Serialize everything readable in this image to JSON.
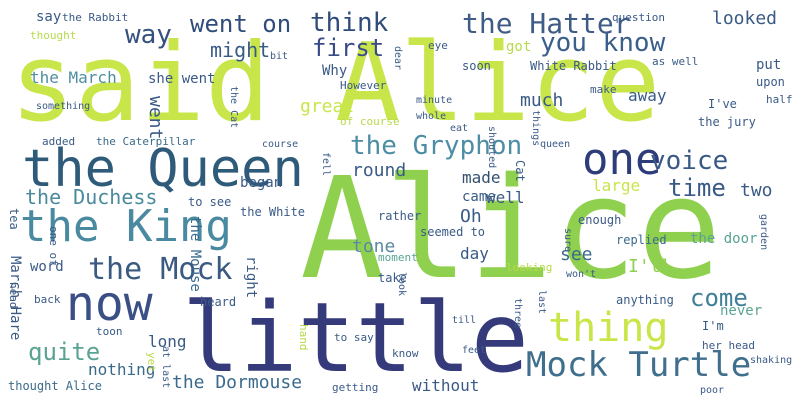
{
  "palette": {
    "background": "#ffffff",
    "lime": "#c8e64a",
    "green": "#8fd14f",
    "teal": "#5aa392",
    "steel": "#3f6f8c",
    "navy": "#2f3c7a",
    "indigo": "#3a3f7a",
    "mint": "#7fcdb5",
    "olive": "#b8d94a"
  },
  "cloud": {
    "words": [
      {
        "text": "said Alice",
        "color": "#c8e64a"
      },
      {
        "text": "Alice",
        "color": "#8fd14f"
      },
      {
        "text": "little",
        "color": "#353b7a"
      },
      {
        "text": "the Queen",
        "color": "#2f5b7a"
      },
      {
        "text": "the King",
        "color": "#4a8aa0"
      },
      {
        "text": "now",
        "color": "#3a4f86"
      },
      {
        "text": "Mock Turtle",
        "color": "#3f6f8c"
      },
      {
        "text": "thing",
        "color": "#c8e64a"
      },
      {
        "text": "one",
        "color": "#2f3c7a"
      },
      {
        "text": "the Mock",
        "color": "#3a5a82"
      },
      {
        "text": "the Hatter",
        "color": "#3f5c86"
      },
      {
        "text": "you know",
        "color": "#3a5f8a"
      },
      {
        "text": "went on",
        "color": "#2f4c7a"
      },
      {
        "text": "think",
        "color": "#2f4c7a"
      },
      {
        "text": "the Gryphon",
        "color": "#4d8ea5"
      },
      {
        "text": "voice",
        "color": "#3a5a86"
      },
      {
        "text": "way",
        "color": "#34507e"
      },
      {
        "text": "first",
        "color": "#3a4a86"
      },
      {
        "text": "the Duchess",
        "color": "#4a8a9c"
      },
      {
        "text": "quite",
        "color": "#5aa392"
      },
      {
        "text": "come",
        "color": "#3f7f98"
      },
      {
        "text": "time",
        "color": "#3a5a86"
      },
      {
        "text": "the Dormouse",
        "color": "#3a6b8c"
      },
      {
        "text": "the March",
        "color": "#4f8fa0"
      },
      {
        "text": "might",
        "color": "#3a5a86"
      },
      {
        "text": "round",
        "color": "#3a5a86"
      },
      {
        "text": "made",
        "color": "#34506e"
      },
      {
        "text": "tone",
        "color": "#5a8aa0"
      },
      {
        "text": "went",
        "color": "#3a5a86"
      },
      {
        "text": "much",
        "color": "#3a5a86"
      },
      {
        "text": "great",
        "color": "#c8e64a"
      },
      {
        "text": "looked",
        "color": "#3a5a86"
      },
      {
        "text": "away",
        "color": "#3a5a86"
      },
      {
        "text": "well",
        "color": "#3a5a86"
      },
      {
        "text": "see",
        "color": "#3a6a8a"
      },
      {
        "text": "I'll",
        "color": "#8fd14f"
      },
      {
        "text": "two",
        "color": "#3a5a86"
      },
      {
        "text": "large",
        "color": "#c8e64a"
      },
      {
        "text": "day",
        "color": "#3a5a86"
      },
      {
        "text": "Oh",
        "color": "#3a5a86"
      },
      {
        "text": "came",
        "color": "#3a5a86"
      },
      {
        "text": "word",
        "color": "#3a5a86"
      },
      {
        "text": "long",
        "color": "#3a5a86"
      },
      {
        "text": "nothing",
        "color": "#3a6a8a"
      },
      {
        "text": "without",
        "color": "#3a5a86"
      },
      {
        "text": "began",
        "color": "#3a5a86"
      },
      {
        "text": "Why",
        "color": "#3a5a86"
      },
      {
        "text": "right",
        "color": "#3a5a86"
      },
      {
        "text": "she went",
        "color": "#3a5a86"
      },
      {
        "text": "the Mouse",
        "color": "#3a6a8a"
      },
      {
        "text": "March Hare",
        "color": "#3a5a86"
      },
      {
        "text": "the Caterpillar",
        "color": "#3a6a8a"
      },
      {
        "text": "White Rabbit",
        "color": "#3a5a86"
      },
      {
        "text": "the door",
        "color": "#5aa392"
      },
      {
        "text": "the jury",
        "color": "#3a5a86"
      },
      {
        "text": "I've",
        "color": "#3a5a86"
      },
      {
        "text": "I'm",
        "color": "#3a5a86"
      },
      {
        "text": "never",
        "color": "#5aa392"
      },
      {
        "text": "anything",
        "color": "#3a5a86"
      },
      {
        "text": "replied",
        "color": "#3a6a8a"
      },
      {
        "text": "seemed to",
        "color": "#3a5a86"
      },
      {
        "text": "rather",
        "color": "#3a5a86"
      },
      {
        "text": "enough",
        "color": "#3a5a86"
      },
      {
        "text": "moment",
        "color": "#5aa392"
      },
      {
        "text": "heard",
        "color": "#3a5a86"
      },
      {
        "text": "take",
        "color": "#3a5a86"
      },
      {
        "text": "to see",
        "color": "#3a5a86"
      },
      {
        "text": "the White",
        "color": "#3a5a86"
      },
      {
        "text": "However",
        "color": "#3a5a86"
      },
      {
        "text": "of course",
        "color": "#b8d94a"
      },
      {
        "text": "say",
        "color": "#3a5a86"
      },
      {
        "text": "the Rabbit",
        "color": "#3a5a86"
      },
      {
        "text": "question",
        "color": "#3a5a86"
      },
      {
        "text": "put",
        "color": "#3a5a86"
      },
      {
        "text": "upon",
        "color": "#3a5a86"
      },
      {
        "text": "got",
        "color": "#b8d94a"
      },
      {
        "text": "soon",
        "color": "#3a5a86"
      },
      {
        "text": "as well",
        "color": "#3a5a86"
      },
      {
        "text": "thought",
        "color": "#b8d94a"
      },
      {
        "text": "thought Alice",
        "color": "#3a6a8a"
      },
      {
        "text": "added",
        "color": "#3a5a86"
      },
      {
        "text": "tea",
        "color": "#3a5a86"
      },
      {
        "text": "head",
        "color": "#3a5a86"
      },
      {
        "text": "back",
        "color": "#3a5a86"
      },
      {
        "text": "looking",
        "color": "#b8d94a"
      },
      {
        "text": "her head",
        "color": "#3a5a86"
      },
      {
        "text": "half",
        "color": "#3a5a86"
      },
      {
        "text": "make",
        "color": "#3a5a86"
      },
      {
        "text": "look",
        "color": "#3a5a86"
      },
      {
        "text": "to say",
        "color": "#3a5a86"
      },
      {
        "text": "know",
        "color": "#3a5a86"
      },
      {
        "text": "sure",
        "color": "#3a5a86"
      },
      {
        "text": "getting",
        "color": "#3a5a86"
      },
      {
        "text": "one of",
        "color": "#3a5a86"
      },
      {
        "text": "Cat",
        "color": "#3a5a86"
      },
      {
        "text": "queen",
        "color": "#3a5a86"
      },
      {
        "text": "hand",
        "color": "#b8d94a"
      },
      {
        "text": "eye",
        "color": "#3a5a86"
      },
      {
        "text": "toon",
        "color": "#3a5a86"
      },
      {
        "text": "at last",
        "color": "#3a5a86"
      },
      {
        "text": "yet",
        "color": "#b8d94a"
      },
      {
        "text": "something",
        "color": "#3a5a86"
      },
      {
        "text": "the Cat",
        "color": "#3a5a86"
      },
      {
        "text": "garden",
        "color": "#3a5a86"
      },
      {
        "text": "won't",
        "color": "#3a5a86"
      },
      {
        "text": "last",
        "color": "#3a5a86"
      },
      {
        "text": "shouted",
        "color": "#3a5a86"
      },
      {
        "text": "shaking",
        "color": "#3a5a86"
      },
      {
        "text": "three",
        "color": "#3a5a86"
      },
      {
        "text": "things",
        "color": "#3a5a86"
      },
      {
        "text": "dear",
        "color": "#3a5a86"
      },
      {
        "text": "minute",
        "color": "#3a5a86"
      },
      {
        "text": "whole",
        "color": "#3a5a86"
      },
      {
        "text": "eat",
        "color": "#3a5a86"
      },
      {
        "text": "fell",
        "color": "#3a5a86"
      },
      {
        "text": "course",
        "color": "#3a5a86"
      },
      {
        "text": "bit",
        "color": "#3a5a86"
      },
      {
        "text": "poor",
        "color": "#3a5a86"
      },
      {
        "text": "feet",
        "color": "#3a5a86"
      },
      {
        "text": "till",
        "color": "#3a5a86"
      }
    ]
  }
}
